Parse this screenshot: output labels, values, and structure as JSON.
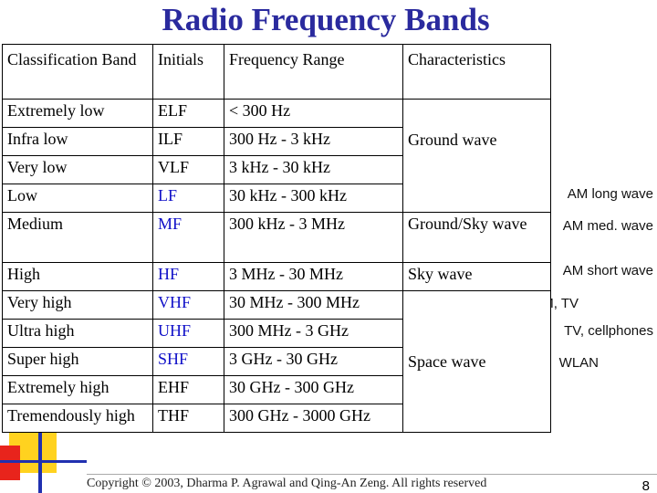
{
  "title": "Radio Frequency Bands",
  "table": {
    "header": [
      "Classification Band",
      "Initials",
      "Frequency Range",
      "Characteristics"
    ],
    "rows": [
      [
        "Extremely low",
        "ELF",
        "< 300 Hz"
      ],
      [
        "Infra low",
        "ILF",
        "300 Hz - 3 kHz"
      ],
      [
        "Very low",
        "VLF",
        "3 kHz - 30 kHz"
      ],
      [
        "Low",
        "LF",
        "30 kHz - 300 kHz"
      ],
      [
        "Medium",
        "MF",
        "300 kHz - 3 MHz"
      ],
      [
        "High",
        "HF",
        "3 MHz - 30 MHz"
      ],
      [
        "Very high",
        "VHF",
        "30 MHz - 300 MHz"
      ],
      [
        "Ultra high",
        "UHF",
        "300 MHz - 3 GHz"
      ],
      [
        "Super high",
        "SHF",
        "3 GHz - 30 GHz"
      ],
      [
        "Extremely high",
        "EHF",
        "30 GHz - 300 GHz"
      ],
      [
        "Tremendously high",
        "THF",
        "300 GHz - 3000 GHz"
      ]
    ],
    "characteristics": [
      "Ground wave",
      "Ground/Sky wave",
      "Sky wave",
      "Space wave"
    ]
  },
  "notes": [
    "AM long wave",
    "AM med. wave",
    "AM short wave",
    "FM, TV",
    "TV, cellphones",
    "WLAN"
  ],
  "footer": "Copyright © 2003, Dharma P. Agrawal and Qing-An Zeng. All rights reserved",
  "page_number": "8"
}
